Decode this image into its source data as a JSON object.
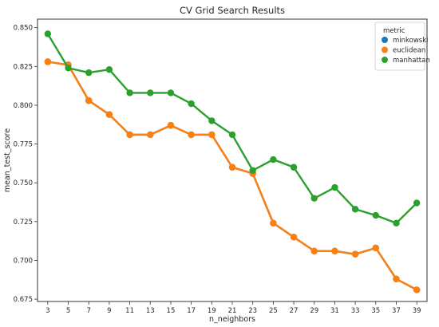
{
  "chart_data": {
    "type": "line",
    "title": "CV Grid Search Results",
    "xlabel": "n_neighbors",
    "ylabel": "mean_test_score",
    "x": [
      3,
      5,
      7,
      9,
      11,
      13,
      15,
      17,
      19,
      21,
      23,
      25,
      27,
      29,
      31,
      33,
      35,
      37,
      39
    ],
    "ylim": [
      0.6735,
      0.8555
    ],
    "yticks": [
      "0.675",
      "0.700",
      "0.725",
      "0.750",
      "0.775",
      "0.800",
      "0.825",
      "0.850"
    ],
    "grid": false,
    "legend": {
      "title": "metric",
      "placement": "top-right"
    },
    "series": [
      {
        "name": "minkowski",
        "color": "#1f77b4",
        "values": [
          0.828,
          0.826,
          0.803,
          0.794,
          0.781,
          0.781,
          0.787,
          0.781,
          0.781,
          0.76,
          0.756,
          0.724,
          0.715,
          0.706,
          0.706,
          0.704,
          0.708,
          0.688,
          0.681
        ]
      },
      {
        "name": "euclidean",
        "color": "#ff7f0e",
        "values": [
          0.828,
          0.826,
          0.803,
          0.794,
          0.781,
          0.781,
          0.787,
          0.781,
          0.781,
          0.76,
          0.756,
          0.724,
          0.715,
          0.706,
          0.706,
          0.704,
          0.708,
          0.688,
          0.681
        ]
      },
      {
        "name": "manhattan",
        "color": "#2ca02c",
        "values": [
          0.846,
          0.824,
          0.821,
          0.823,
          0.808,
          0.808,
          0.808,
          0.801,
          0.79,
          0.781,
          0.758,
          0.765,
          0.76,
          0.74,
          0.747,
          0.733,
          0.729,
          0.724,
          0.737
        ]
      }
    ]
  }
}
